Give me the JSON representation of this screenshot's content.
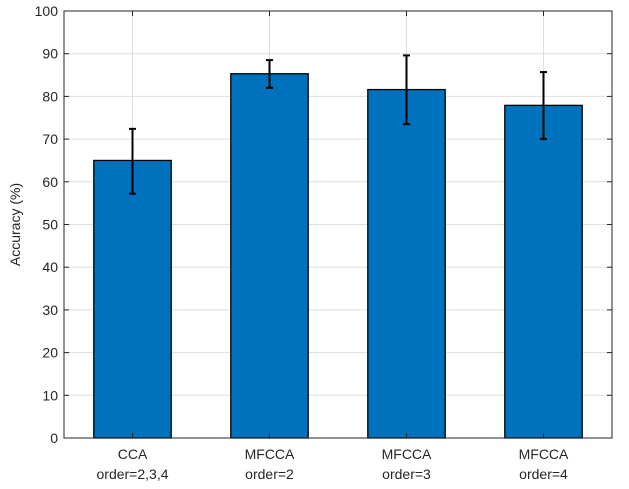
{
  "chart_data": {
    "type": "bar",
    "categories": [
      [
        "CCA",
        "order=2,3,4"
      ],
      [
        "MFCCA",
        "order=2"
      ],
      [
        "MFCCA",
        "order=3"
      ],
      [
        "MFCCA",
        "order=4"
      ]
    ],
    "values": [
      65.0,
      85.3,
      81.6,
      77.9
    ],
    "error_low": [
      57.2,
      82.0,
      73.5,
      70.0
    ],
    "error_high": [
      72.4,
      88.5,
      89.6,
      85.7
    ],
    "ylabel": "Accuracy (%)",
    "ylim": [
      0,
      100
    ],
    "yticks": [
      0,
      10,
      20,
      30,
      40,
      50,
      60,
      70,
      80,
      90,
      100
    ],
    "grid": true,
    "bar_color": "#0072BD",
    "grid_color": "#DFDFDF"
  }
}
